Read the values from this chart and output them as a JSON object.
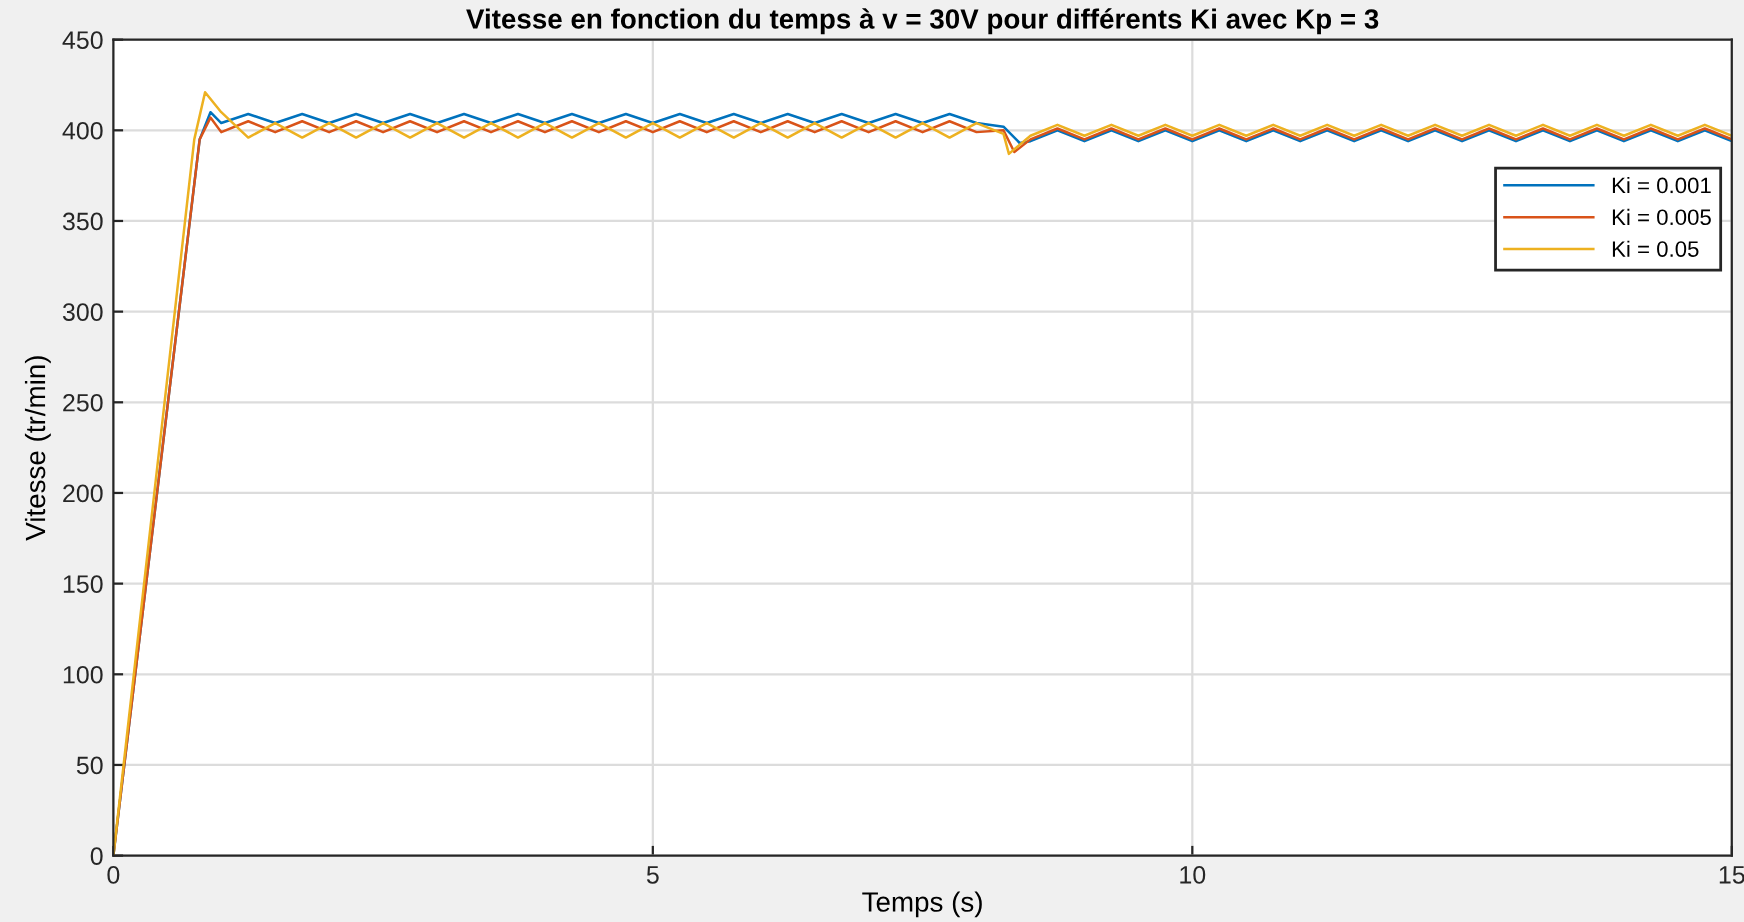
{
  "chart_data": {
    "type": "line",
    "title": "Vitesse en fonction du temps à v = 30V pour différents Ki avec Kp = 3",
    "xlabel": "Temps (s)",
    "ylabel": "Vitesse (tr/min)",
    "xlim": [
      0,
      15
    ],
    "ylim": [
      0,
      450
    ],
    "xticks": [
      0,
      5,
      10,
      15
    ],
    "yticks": [
      0,
      50,
      100,
      150,
      200,
      250,
      300,
      350,
      400,
      450
    ],
    "grid": true,
    "legend": "right",
    "line_style": "solid",
    "marker": "none",
    "series": [
      {
        "name": "Ki = 0.001",
        "color": "#0072bd",
        "x": [
          0,
          0.8,
          0.9,
          1.0,
          1.25,
          1.5,
          1.75,
          2.0,
          2.25,
          2.5,
          2.75,
          3.0,
          3.25,
          3.5,
          3.75,
          4.0,
          4.25,
          4.5,
          4.75,
          5.0,
          5.25,
          5.5,
          5.75,
          6.0,
          6.25,
          6.5,
          6.75,
          7.0,
          7.25,
          7.5,
          7.75,
          8.0,
          8.25,
          8.4,
          8.5,
          8.75,
          9,
          9.25,
          9.5,
          9.75,
          10,
          10.25,
          10.5,
          10.75,
          11,
          11.25,
          11.5,
          11.75,
          12,
          12.25,
          12.5,
          12.75,
          13,
          13.25,
          13.5,
          13.75,
          14,
          14.25,
          14.5,
          14.75,
          15
        ],
        "values": [
          0,
          395,
          410,
          404,
          409,
          404,
          409,
          404,
          409,
          404,
          409,
          404,
          409,
          404,
          409,
          404,
          409,
          404,
          409,
          404,
          409,
          404,
          409,
          404,
          409,
          404,
          409,
          404,
          409,
          404,
          409,
          404,
          402,
          393,
          394,
          400,
          394,
          400,
          394,
          400,
          394,
          400,
          394,
          400,
          394,
          400,
          394,
          400,
          394,
          400,
          394,
          400,
          394,
          400,
          394,
          400,
          394,
          400,
          394,
          400,
          394
        ]
      },
      {
        "name": "Ki = 0.005",
        "color": "#d95319",
        "x": [
          0,
          0.8,
          0.9,
          1.0,
          1.25,
          1.5,
          1.75,
          2.0,
          2.25,
          2.5,
          2.75,
          3.0,
          3.25,
          3.5,
          3.75,
          4.0,
          4.25,
          4.5,
          4.75,
          5.0,
          5.25,
          5.5,
          5.75,
          6.0,
          6.25,
          6.5,
          6.75,
          7.0,
          7.25,
          7.5,
          7.75,
          8.0,
          8.25,
          8.35,
          8.5,
          8.75,
          9,
          9.25,
          9.5,
          9.75,
          10,
          10.25,
          10.5,
          10.75,
          11,
          11.25,
          11.5,
          11.75,
          12,
          12.25,
          12.5,
          12.75,
          13,
          13.25,
          13.5,
          13.75,
          14,
          14.25,
          14.5,
          14.75,
          15
        ],
        "values": [
          0,
          395,
          407,
          399,
          405,
          399,
          405,
          399,
          405,
          399,
          405,
          399,
          405,
          399,
          405,
          399,
          405,
          399,
          405,
          399,
          405,
          399,
          405,
          399,
          405,
          399,
          405,
          399,
          405,
          399,
          405,
          399,
          400,
          388,
          395,
          401,
          395,
          401,
          395,
          401,
          395,
          401,
          395,
          401,
          395,
          401,
          395,
          401,
          395,
          401,
          395,
          401,
          395,
          401,
          395,
          401,
          395,
          401,
          395,
          401,
          395
        ]
      },
      {
        "name": "Ki = 0.05",
        "color": "#edb120",
        "x": [
          0,
          0.75,
          0.85,
          1.0,
          1.25,
          1.5,
          1.75,
          2.0,
          2.25,
          2.5,
          2.75,
          3.0,
          3.25,
          3.5,
          3.75,
          4.0,
          4.25,
          4.5,
          4.75,
          5.0,
          5.25,
          5.5,
          5.75,
          6.0,
          6.25,
          6.5,
          6.75,
          7.0,
          7.25,
          7.5,
          7.75,
          8.0,
          8.25,
          8.3,
          8.5,
          8.75,
          9,
          9.25,
          9.5,
          9.75,
          10,
          10.25,
          10.5,
          10.75,
          11,
          11.25,
          11.5,
          11.75,
          12,
          12.25,
          12.5,
          12.75,
          13,
          13.25,
          13.5,
          13.75,
          14,
          14.25,
          14.5,
          14.75,
          15
        ],
        "values": [
          0,
          395,
          421,
          410,
          396,
          404,
          396,
          404,
          396,
          404,
          396,
          404,
          396,
          404,
          396,
          404,
          396,
          404,
          396,
          404,
          396,
          404,
          396,
          404,
          396,
          404,
          396,
          404,
          396,
          404,
          396,
          404,
          398,
          387,
          397,
          403,
          397,
          403,
          397,
          403,
          397,
          403,
          397,
          403,
          397,
          403,
          397,
          403,
          397,
          403,
          397,
          403,
          397,
          403,
          397,
          403,
          397,
          403,
          397,
          403,
          397
        ]
      }
    ]
  }
}
